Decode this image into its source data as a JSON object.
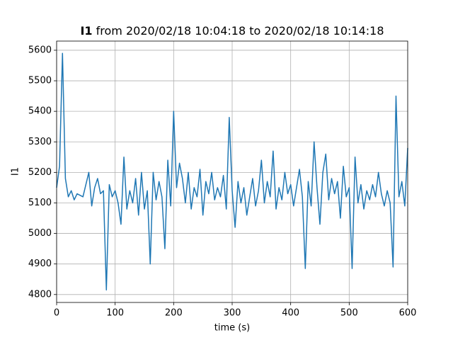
{
  "chart_data": {
    "type": "line",
    "title_parts": [
      "I1",
      "from 2020/02/18 10:04:18 to 2020/02/18 10:14:18"
    ],
    "xlabel": "time (s)",
    "ylabel": "I1",
    "x": [
      0,
      5,
      10,
      15,
      20,
      25,
      30,
      35,
      40,
      45,
      50,
      55,
      60,
      65,
      70,
      75,
      80,
      85,
      90,
      95,
      100,
      105,
      110,
      115,
      120,
      125,
      130,
      135,
      140,
      145,
      150,
      155,
      160,
      165,
      170,
      175,
      180,
      185,
      190,
      195,
      200,
      205,
      210,
      215,
      220,
      225,
      230,
      235,
      240,
      245,
      250,
      255,
      260,
      265,
      270,
      275,
      280,
      285,
      290,
      295,
      300,
      305,
      310,
      315,
      320,
      325,
      330,
      335,
      340,
      345,
      350,
      355,
      360,
      365,
      370,
      375,
      380,
      385,
      390,
      395,
      400,
      405,
      410,
      415,
      420,
      425,
      430,
      435,
      440,
      445,
      450,
      455,
      460,
      465,
      470,
      475,
      480,
      485,
      490,
      495,
      500,
      505,
      510,
      515,
      520,
      525,
      530,
      535,
      540,
      545,
      550,
      555,
      560,
      565,
      570,
      575,
      580,
      585,
      590,
      595,
      600
    ],
    "series": [
      {
        "name": "I1",
        "color": "#1f77b4",
        "values": [
          5150,
          5220,
          5590,
          5180,
          5120,
          5140,
          5110,
          5130,
          5125,
          5120,
          5160,
          5200,
          5090,
          5150,
          5180,
          5130,
          5140,
          4815,
          5160,
          5120,
          5140,
          5100,
          5030,
          5250,
          5080,
          5140,
          5100,
          5180,
          5060,
          5200,
          5080,
          5140,
          4900,
          5200,
          5110,
          5170,
          5120,
          4950,
          5240,
          5090,
          5400,
          5150,
          5230,
          5180,
          5100,
          5200,
          5080,
          5150,
          5120,
          5210,
          5060,
          5170,
          5130,
          5200,
          5110,
          5150,
          5120,
          5190,
          5080,
          5380,
          5140,
          5020,
          5170,
          5100,
          5150,
          5060,
          5120,
          5180,
          5090,
          5140,
          5240,
          5100,
          5170,
          5120,
          5270,
          5080,
          5150,
          5110,
          5200,
          5130,
          5160,
          5090,
          5150,
          5210,
          5120,
          4885,
          5170,
          5090,
          5300,
          5150,
          5030,
          5200,
          5260,
          5110,
          5180,
          5130,
          5170,
          5050,
          5220,
          5120,
          5150,
          4885,
          5250,
          5100,
          5160,
          5080,
          5140,
          5110,
          5160,
          5120,
          5200,
          5130,
          5090,
          5140,
          5100,
          4890,
          5450,
          5120,
          5170,
          5090,
          5280
        ]
      }
    ],
    "xlim": [
      0,
      600
    ],
    "ylim": [
      4774,
      5630
    ],
    "xticks": [
      0,
      100,
      200,
      300,
      400,
      500,
      600
    ],
    "yticks": [
      4800,
      4900,
      5000,
      5100,
      5200,
      5300,
      5400,
      5500,
      5600
    ],
    "grid": true
  }
}
